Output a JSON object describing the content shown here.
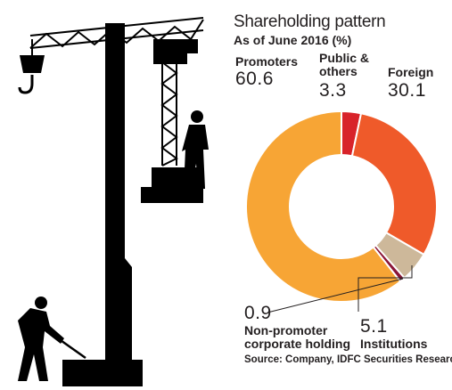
{
  "title": "Shareholding pattern",
  "subtitle": "As of June 2016 (%)",
  "source": "Source: Company, IDFC Securities Research",
  "chart_data": {
    "type": "pie",
    "donut": true,
    "title": "Shareholding pattern",
    "subtitle": "As of June 2016 (%)",
    "labels": [
      "Public & others",
      "Foreign",
      "Institutions",
      "Non-promoter corporate holding",
      "Promoters"
    ],
    "label_display": [
      "Public &\nothers",
      "Foreign",
      "Institutions",
      "Non-promoter\ncorporate holding",
      "Promoters"
    ],
    "values": [
      3.3,
      30.1,
      5.1,
      0.9,
      60.6
    ],
    "value_display": [
      "3.3",
      "30.1",
      "5.1",
      "0.9",
      "60.6"
    ],
    "colors": [
      "#d8232a",
      "#ef5a2a",
      "#cdb89a",
      "#8a1538",
      "#f7a535"
    ],
    "start": "top, clockwise"
  },
  "colors": {
    "silhouette": "#000000",
    "background": "#ffffff",
    "text": "#231f20"
  }
}
